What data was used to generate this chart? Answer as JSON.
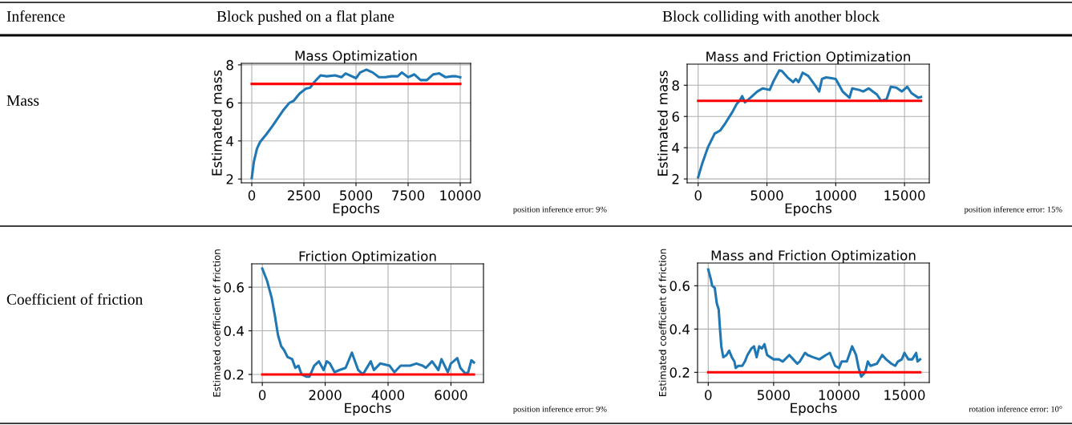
{
  "chart_data": [
    {
      "type": "line",
      "title": "Mass Optimization",
      "xlabel": "Epochs",
      "ylabel": "Estimated mass",
      "xlim": [
        -500,
        10500
      ],
      "ylim": [
        1.8,
        8.08
      ],
      "xticks": [
        0,
        2500,
        5000,
        7500,
        10000
      ],
      "yticks": [
        2,
        4,
        6,
        8
      ],
      "grid": true,
      "annotations": [
        "Inference",
        "Block pushed on a flat plane",
        "Mass",
        "position inference error: 9%"
      ],
      "series": [
        {
          "color": "#1f77b4",
          "x": [
            0,
            100,
            250,
            400,
            700,
            1000,
            1500,
            1800,
            2000,
            2300,
            2600,
            2800,
            3000,
            3300,
            3600,
            4000,
            4300,
            4500,
            4800,
            5000,
            5200,
            5500,
            5800,
            6100,
            6400,
            6700,
            7000,
            7200,
            7500,
            7800,
            8100,
            8400,
            8700,
            9000,
            9300,
            9600,
            9800,
            10000
          ],
          "values": [
            2.05,
            2.9,
            3.6,
            3.95,
            4.35,
            4.8,
            5.6,
            6.0,
            6.1,
            6.5,
            6.75,
            6.8,
            7.1,
            7.45,
            7.4,
            7.45,
            7.35,
            7.55,
            7.4,
            7.3,
            7.6,
            7.75,
            7.6,
            7.35,
            7.35,
            7.4,
            7.4,
            7.6,
            7.35,
            7.5,
            7.2,
            7.2,
            7.5,
            7.55,
            7.35,
            7.4,
            7.4,
            7.35
          ]
        },
        {
          "color": "#ff0000",
          "x": [
            0,
            10000
          ],
          "values": [
            7,
            7
          ]
        }
      ]
    },
    {
      "type": "line",
      "title": "Mass and Friction Optimization",
      "xlabel": "Epochs",
      "ylabel": "Estimated mass",
      "xlim": [
        -800,
        16800
      ],
      "ylim": [
        1.75,
        9.35
      ],
      "xticks": [
        0,
        5000,
        10000,
        15000
      ],
      "yticks": [
        2,
        4,
        6,
        8
      ],
      "grid": true,
      "annotations": [
        "Block colliding with another block",
        "position inference error: 15%"
      ],
      "series": [
        {
          "color": "#1f77b4",
          "x": [
            0,
            300,
            700,
            1200,
            1600,
            2000,
            2500,
            2800,
            3000,
            3200,
            3400,
            3800,
            4300,
            4700,
            5200,
            5500,
            5900,
            6100,
            6500,
            6900,
            7100,
            7300,
            7600,
            8000,
            8500,
            8800,
            9000,
            9300,
            9700,
            10000,
            10500,
            11000,
            11200,
            11700,
            12000,
            12400,
            13000,
            13300,
            13700,
            14000,
            14400,
            14800,
            15200,
            15500,
            16000,
            16200
          ],
          "values": [
            2.1,
            3.0,
            4.0,
            4.9,
            5.1,
            5.6,
            6.3,
            6.8,
            7.0,
            7.3,
            6.9,
            7.2,
            7.6,
            7.8,
            7.7,
            8.3,
            8.95,
            8.9,
            8.5,
            8.2,
            8.4,
            8.2,
            8.8,
            8.6,
            8.0,
            7.6,
            8.4,
            8.5,
            8.45,
            8.4,
            7.6,
            7.2,
            7.8,
            7.7,
            7.6,
            7.8,
            7.4,
            7.0,
            7.1,
            7.9,
            7.85,
            7.6,
            7.9,
            7.5,
            7.2,
            7.25
          ]
        },
        {
          "color": "#ff0000",
          "x": [
            0,
            16200
          ],
          "values": [
            7,
            7
          ]
        }
      ]
    },
    {
      "type": "line",
      "title": "Friction Optimization",
      "xlabel": "Epochs",
      "ylabel": "Estimated coefficient of friction",
      "xlim": [
        -335,
        7035
      ],
      "ylim": [
        0.163,
        0.707
      ],
      "xticks": [
        0,
        2000,
        4000,
        6000
      ],
      "yticks": [
        {
          "value": 0.2,
          "label": "0.2"
        },
        {
          "value": 0.4,
          "label": "0.4"
        },
        {
          "value": 0.6,
          "label": "0.6"
        }
      ],
      "grid": true,
      "annotations": [
        "Coefficient of friction",
        "position inference error: 9%"
      ],
      "series": [
        {
          "color": "#1f77b4",
          "x": [
            0,
            150,
            300,
            400,
            500,
            600,
            700,
            800,
            950,
            1050,
            1150,
            1250,
            1400,
            1500,
            1650,
            1800,
            1950,
            2050,
            2150,
            2300,
            2450,
            2650,
            2850,
            3050,
            3200,
            3450,
            3550,
            3750,
            4050,
            4200,
            4400,
            4700,
            4900,
            5100,
            5200,
            5400,
            5600,
            5700,
            5900,
            6000,
            6200,
            6300,
            6450,
            6550,
            6650,
            6730
          ],
          "values": [
            0.685,
            0.63,
            0.55,
            0.47,
            0.38,
            0.33,
            0.31,
            0.28,
            0.27,
            0.23,
            0.24,
            0.2,
            0.19,
            0.19,
            0.24,
            0.26,
            0.22,
            0.26,
            0.25,
            0.21,
            0.22,
            0.23,
            0.3,
            0.22,
            0.2,
            0.26,
            0.22,
            0.25,
            0.24,
            0.21,
            0.24,
            0.24,
            0.25,
            0.24,
            0.23,
            0.26,
            0.22,
            0.27,
            0.21,
            0.25,
            0.275,
            0.23,
            0.205,
            0.21,
            0.265,
            0.255
          ]
        },
        {
          "color": "#ff0000",
          "x": [
            0,
            6730
          ],
          "values": [
            0.2,
            0.2
          ]
        }
      ]
    },
    {
      "type": "line",
      "title": "Mass and Friction Optimization",
      "xlabel": "Epochs",
      "ylabel": "Estimated coefficient of friction",
      "xlim": [
        -816,
        16900
      ],
      "ylim": [
        0.153,
        0.705
      ],
      "xticks": [
        0,
        5000,
        10000,
        15000
      ],
      "yticks": [
        {
          "value": 0.2,
          "label": "0.2"
        },
        {
          "value": 0.4,
          "label": "0.4"
        },
        {
          "value": 0.6,
          "label": "0.6"
        }
      ],
      "grid": true,
      "annotations": [
        "rotation inference error: 10°"
      ],
      "series": [
        {
          "color": "#1f77b4",
          "x": [
            0,
            200,
            300,
            500,
            650,
            800,
            900,
            1000,
            1150,
            1400,
            1600,
            1800,
            2000,
            2100,
            2300,
            2600,
            2800,
            3000,
            3300,
            3500,
            3700,
            3900,
            4100,
            4300,
            4500,
            5000,
            5400,
            5700,
            6200,
            6500,
            6800,
            7000,
            7400,
            7600,
            8000,
            8500,
            9000,
            9300,
            9700,
            10000,
            10200,
            10600,
            11000,
            11300,
            11500,
            11700,
            12000,
            12200,
            12400,
            12900,
            13300,
            13600,
            14000,
            14300,
            14500,
            14800,
            15000,
            15300,
            15600,
            15900,
            16000,
            16200
          ],
          "values": [
            0.675,
            0.63,
            0.6,
            0.59,
            0.52,
            0.49,
            0.4,
            0.32,
            0.27,
            0.28,
            0.3,
            0.27,
            0.25,
            0.22,
            0.23,
            0.23,
            0.25,
            0.28,
            0.31,
            0.32,
            0.27,
            0.32,
            0.31,
            0.33,
            0.28,
            0.26,
            0.26,
            0.25,
            0.28,
            0.26,
            0.24,
            0.25,
            0.29,
            0.28,
            0.27,
            0.26,
            0.28,
            0.29,
            0.23,
            0.22,
            0.25,
            0.25,
            0.32,
            0.28,
            0.22,
            0.18,
            0.2,
            0.25,
            0.23,
            0.24,
            0.28,
            0.26,
            0.24,
            0.23,
            0.25,
            0.26,
            0.29,
            0.26,
            0.26,
            0.29,
            0.25,
            0.26
          ]
        },
        {
          "color": "#ff0000",
          "x": [
            0,
            16200
          ],
          "values": [
            0.2,
            0.2
          ]
        }
      ]
    }
  ]
}
